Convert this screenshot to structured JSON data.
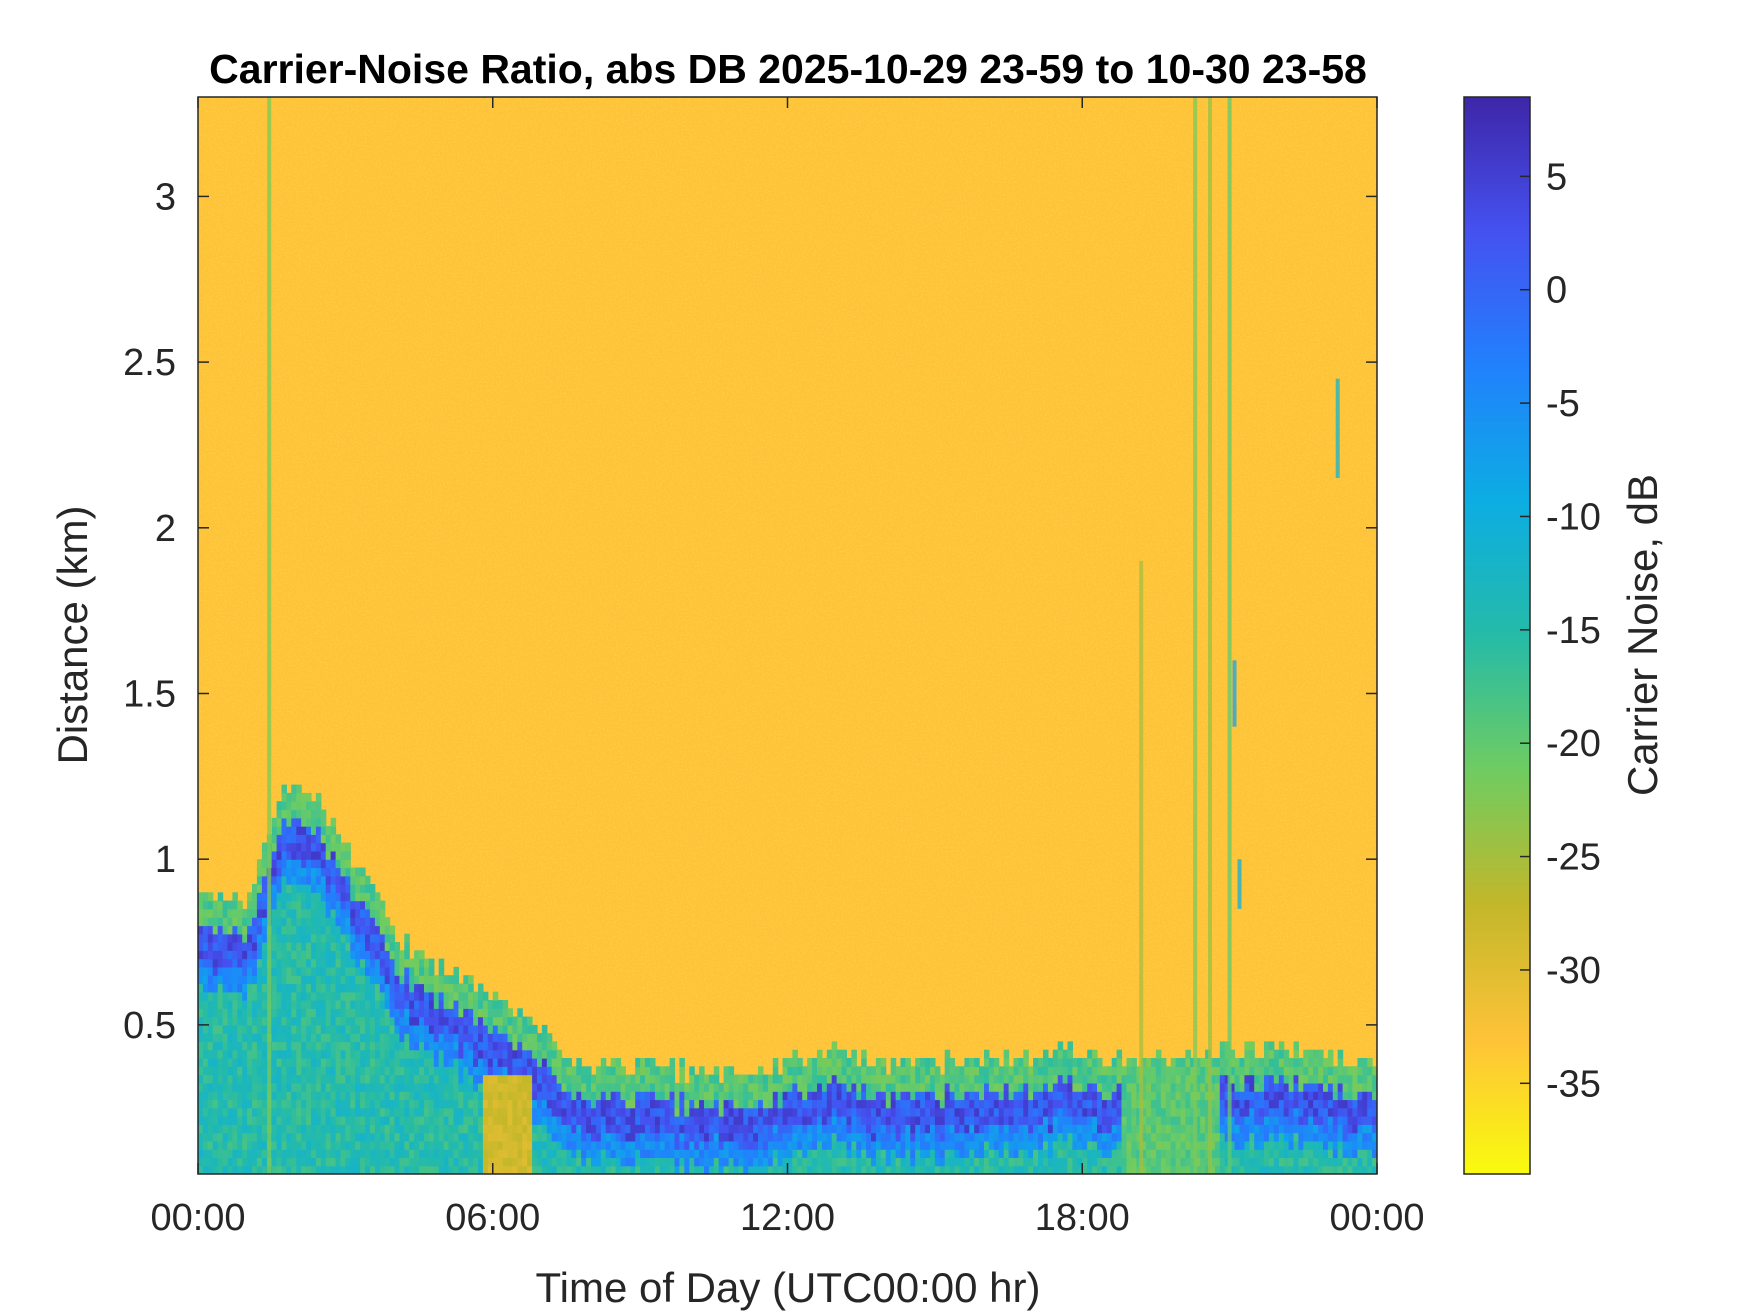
{
  "chart_data": {
    "type": "heatmap",
    "title": "Carrier-Noise Ratio, abs DB 2025-10-29 23-59 to 10-30 23-58",
    "xlabel": "Time of Day (UTC00:00 hr)",
    "ylabel": "Distance (km)",
    "xlim_hours": [
      0,
      24
    ],
    "ylim_km": [
      0.05,
      3.3
    ],
    "x_ticks": [
      {
        "value": 0,
        "label": "00:00"
      },
      {
        "value": 6,
        "label": "06:00"
      },
      {
        "value": 12,
        "label": "12:00"
      },
      {
        "value": 18,
        "label": "18:00"
      },
      {
        "value": 24,
        "label": "00:00"
      }
    ],
    "y_ticks": [
      {
        "value": 0.5,
        "label": "0.5"
      },
      {
        "value": 1,
        "label": "1"
      },
      {
        "value": 1.5,
        "label": "1.5"
      },
      {
        "value": 2,
        "label": "2"
      },
      {
        "value": 2.5,
        "label": "2.5"
      },
      {
        "value": 3,
        "label": "3"
      }
    ],
    "colorbar": {
      "label": "Carrier Noise, dB",
      "range": [
        -39,
        8.5
      ],
      "ticks": [
        {
          "value": 5,
          "label": "5"
        },
        {
          "value": 0,
          "label": "0"
        },
        {
          "value": -5,
          "label": "-5"
        },
        {
          "value": -10,
          "label": "-10"
        },
        {
          "value": -15,
          "label": "-15"
        },
        {
          "value": -20,
          "label": "-20"
        },
        {
          "value": -25,
          "label": "-25"
        },
        {
          "value": -30,
          "label": "-30"
        },
        {
          "value": -35,
          "label": "-35"
        }
      ],
      "colormap": "parula",
      "colors": [
        "#f9fb0e",
        "#fec338",
        "#c3b72a",
        "#6fcc61",
        "#25bba8",
        "#0cade3",
        "#2181fd",
        "#4551f0",
        "#3e26a8"
      ]
    },
    "background_value_db": -33,
    "boundary_layer_top_km": [
      {
        "hour": 0.0,
        "km": 0.72
      },
      {
        "hour": 1.0,
        "km": 0.7
      },
      {
        "hour": 1.8,
        "km": 1.05
      },
      {
        "hour": 2.5,
        "km": 1.0
      },
      {
        "hour": 3.3,
        "km": 0.8
      },
      {
        "hour": 4.0,
        "km": 0.6
      },
      {
        "hour": 5.0,
        "km": 0.5
      },
      {
        "hour": 6.0,
        "km": 0.4
      },
      {
        "hour": 6.7,
        "km": 0.35
      },
      {
        "hour": 7.5,
        "km": 0.21
      },
      {
        "hour": 9.0,
        "km": 0.2
      },
      {
        "hour": 10.5,
        "km": 0.18
      },
      {
        "hour": 12.0,
        "km": 0.21
      },
      {
        "hour": 13.0,
        "km": 0.26
      },
      {
        "hour": 14.0,
        "km": 0.2
      },
      {
        "hour": 16.0,
        "km": 0.22
      },
      {
        "hour": 17.5,
        "km": 0.25
      },
      {
        "hour": 19.0,
        "km": 0.22
      },
      {
        "hour": 21.0,
        "km": 0.25
      },
      {
        "hour": 22.5,
        "km": 0.25
      },
      {
        "hour": 24.0,
        "km": 0.2
      }
    ]
  }
}
